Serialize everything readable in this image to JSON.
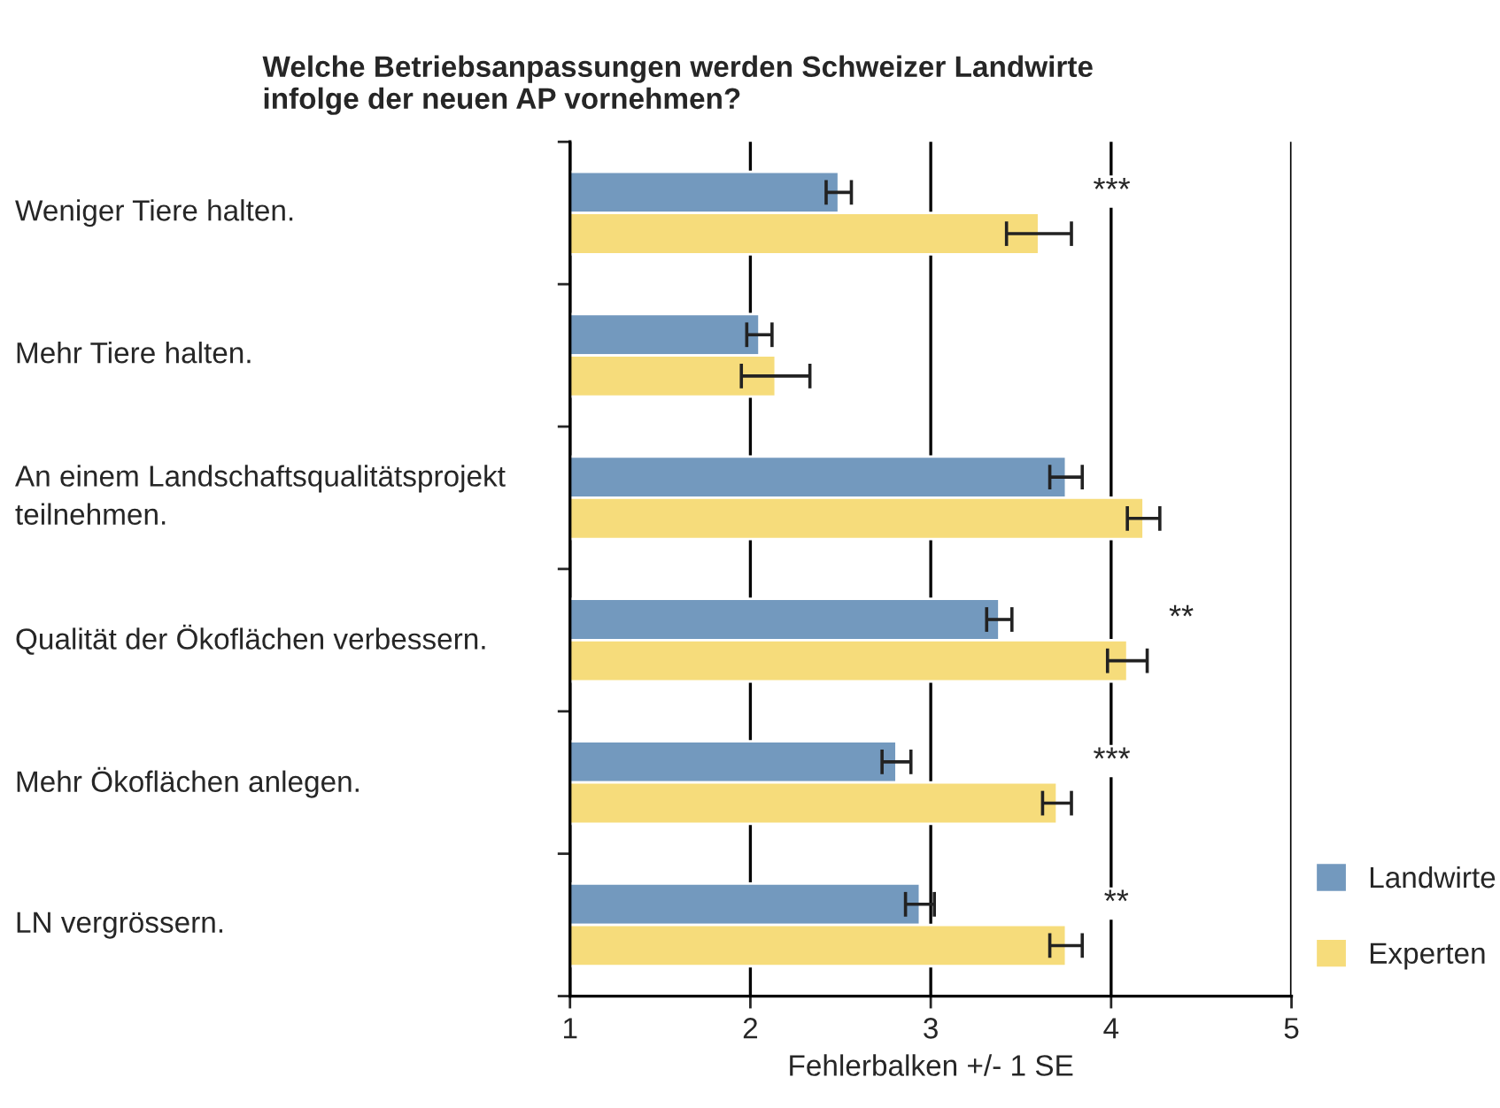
{
  "chart_data": {
    "type": "bar",
    "orientation": "horizontal",
    "title": "Welche Betriebsanpassungen werden Schweizer Landwirte\ninfolge der neuen AP vornehmen?",
    "xlabel": "Fehlerbalken +/- 1 SE",
    "categories": [
      "Weniger Tiere halten.",
      "Mehr Tiere halten.",
      "An einem Landschaftsqualitätsprojekt\nteilnehmen.",
      "Qualität der Ökoflächen verbessern.",
      "Mehr Ökoflächen anlegen.",
      "LN vergrössern."
    ],
    "series": [
      {
        "name": "Landwirte",
        "color": "#7399be",
        "values": [
          2.49,
          2.05,
          3.75,
          3.38,
          2.81,
          2.94
        ],
        "errors": [
          0.07,
          0.07,
          0.09,
          0.07,
          0.08,
          0.08
        ]
      },
      {
        "name": "Experten",
        "color": "#f6dc7b",
        "values": [
          3.6,
          2.14,
          4.18,
          4.09,
          3.7,
          3.75
        ],
        "errors": [
          0.18,
          0.19,
          0.09,
          0.11,
          0.08,
          0.09
        ]
      }
    ],
    "xlim": [
      1,
      5
    ],
    "xticks": [
      1,
      2,
      3,
      4,
      5
    ],
    "grid": "x",
    "legend": "bottom right",
    "annotations": [
      "***",
      "**",
      "***",
      "**"
    ]
  }
}
